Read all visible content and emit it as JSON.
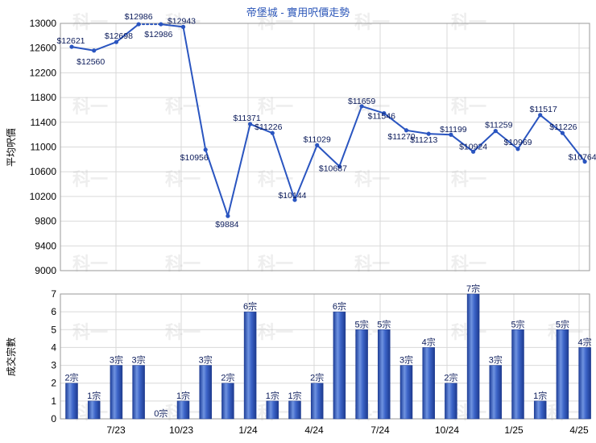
{
  "chart_data": [
    {
      "type": "line",
      "title": "帝堡城 - 實用呎價走勢",
      "ylabel": "平均呎價",
      "ylim": [
        9000,
        13000
      ],
      "yticks": [
        9000,
        9400,
        9800,
        10200,
        10600,
        11000,
        11400,
        11800,
        12200,
        12600,
        13000
      ],
      "grid": true,
      "line_color": "#2a55c0",
      "series": [
        {
          "values": [
            12621,
            12560,
            12698,
            12986,
            12986,
            12943,
            10956,
            9884,
            11371,
            11226,
            10144,
            11029,
            10687,
            11659,
            11546,
            11270,
            11213,
            11199,
            10924,
            11259,
            10969,
            11517,
            11226,
            10764
          ],
          "labels": [
            "$12621",
            "$12560",
            "$12698",
            "$12986",
            "$12986",
            "$12943",
            "$10956",
            "$9884",
            "$11371",
            "$11226",
            "$10144",
            "$11029",
            "$10687",
            "$11659",
            "$11546",
            "$11270",
            "$11213",
            "$11199",
            "$10924",
            "$11259",
            "$10969",
            "$11517",
            "$11226",
            "$10764"
          ],
          "dotted_segments": [
            3
          ]
        }
      ]
    },
    {
      "type": "bar",
      "ylabel": "成交宗數",
      "ylim": [
        0,
        7
      ],
      "yticks": [
        0,
        1,
        2,
        3,
        4,
        5,
        6,
        7
      ],
      "grid": true,
      "bar_color": "#3a62c4",
      "x_tick_labels": [
        "7/23",
        "10/23",
        "1/24",
        "4/24",
        "7/24",
        "10/24",
        "1/25",
        "4/25"
      ],
      "values": [
        2,
        1,
        3,
        3,
        0,
        1,
        3,
        2,
        6,
        1,
        1,
        2,
        6,
        5,
        5,
        3,
        4,
        2,
        7,
        3,
        5,
        1,
        5,
        4
      ],
      "labels": [
        "2宗",
        "1宗",
        "3宗",
        "3宗",
        "0宗",
        "1宗",
        "3宗",
        "2宗",
        "6宗",
        "1宗",
        "1宗",
        "2宗",
        "6宗",
        "5宗",
        "5宗",
        "3宗",
        "4宗",
        "2宗",
        "7宗",
        "3宗",
        "5宗",
        "1宗",
        "5宗",
        "4宗"
      ]
    }
  ],
  "watermark": "科一"
}
